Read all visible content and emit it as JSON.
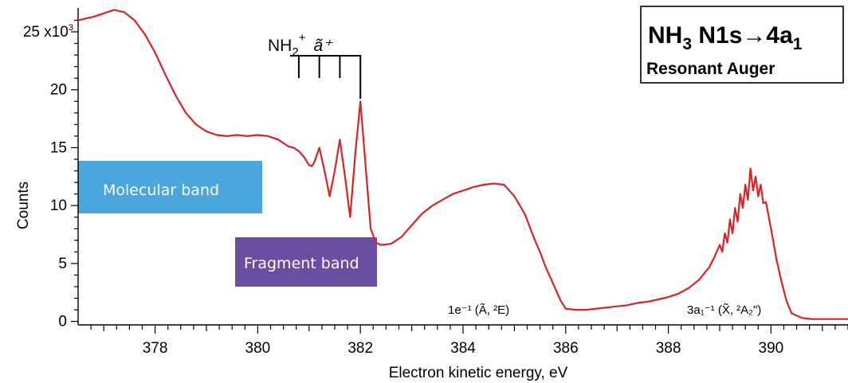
{
  "chart_data": {
    "type": "line",
    "title": "NH₃ N1s→4a₁",
    "title_parts": {
      "a": "NH",
      "a_sub": "3",
      "b": " N1s→4a",
      "b_sub": "1"
    },
    "subtitle": "Resonant Auger",
    "xlabel": "Electron kinetic energy, eV",
    "ylabel": "Counts",
    "xlim": [
      376.5,
      391.5
    ],
    "ylim": [
      -0.3,
      27.2
    ],
    "x_ticks": [
      378,
      380,
      382,
      384,
      386,
      388,
      390
    ],
    "y_ticks": [
      0,
      5,
      10,
      15,
      20,
      25
    ],
    "y_tick_labels": [
      "0",
      "5",
      "10",
      "15",
      "20",
      "25 x10"
    ],
    "y_top_exponent": "3",
    "grid": false,
    "legend": "none",
    "line_color": "#d62526",
    "series": [
      {
        "x": [
          376.5,
          376.8,
          377.0,
          377.2,
          377.4,
          377.6,
          377.8,
          378.0,
          378.2,
          378.4,
          378.6,
          378.8,
          379.0,
          379.2,
          379.4,
          379.6,
          379.8,
          380.0,
          380.2,
          380.4,
          380.6,
          380.7,
          380.8,
          380.9,
          381.0,
          381.05,
          381.1,
          381.2,
          381.3,
          381.4,
          381.5,
          381.6,
          381.7,
          381.8,
          381.9,
          382.0,
          382.1,
          382.2,
          382.3,
          382.4,
          382.6,
          382.8,
          383.0,
          383.2,
          383.4,
          383.6,
          383.8,
          384.0,
          384.2,
          384.4,
          384.6,
          384.8,
          384.9,
          385.0,
          385.2,
          385.4,
          385.5,
          385.6,
          385.7,
          385.8,
          385.9,
          386.0,
          386.2,
          386.4,
          386.6,
          386.8,
          387.0,
          387.2,
          387.4,
          387.6,
          387.8,
          388.0,
          388.2,
          388.4,
          388.6,
          388.8,
          388.9,
          389.0,
          389.05,
          389.1,
          389.15,
          389.2,
          389.25,
          389.3,
          389.35,
          389.4,
          389.45,
          389.5,
          389.55,
          389.6,
          389.65,
          389.7,
          389.75,
          389.8,
          389.85,
          389.9,
          390.0,
          390.1,
          390.2,
          390.3,
          390.4,
          390.6,
          390.8,
          391.0,
          391.5
        ],
        "y": [
          26.0,
          26.3,
          26.6,
          26.9,
          26.7,
          26.0,
          24.8,
          23.2,
          21.3,
          19.5,
          18.0,
          17.0,
          16.4,
          16.1,
          16.0,
          16.1,
          16.0,
          16.1,
          16.0,
          15.7,
          15.1,
          15.0,
          14.7,
          14.2,
          13.5,
          13.4,
          13.7,
          15.0,
          13.0,
          10.8,
          13.0,
          15.7,
          12.5,
          9.0,
          14.5,
          19.0,
          13.5,
          8.0,
          6.8,
          6.6,
          6.7,
          7.3,
          8.3,
          9.3,
          10.0,
          10.5,
          11.0,
          11.3,
          11.6,
          11.8,
          11.9,
          11.8,
          11.3,
          10.8,
          9.3,
          7.0,
          6.0,
          4.8,
          3.8,
          2.8,
          1.8,
          1.1,
          1.0,
          1.0,
          1.1,
          1.2,
          1.3,
          1.4,
          1.6,
          1.7,
          1.9,
          2.1,
          2.4,
          2.9,
          3.6,
          4.7,
          5.6,
          6.6,
          6.0,
          7.6,
          6.8,
          8.8,
          7.6,
          9.8,
          8.6,
          11.0,
          9.8,
          11.8,
          10.5,
          13.2,
          11.3,
          12.5,
          10.8,
          11.8,
          10.2,
          10.3,
          8.0,
          5.5,
          3.5,
          1.8,
          0.7,
          0.3,
          0.2,
          0.2,
          0.2
        ]
      }
    ],
    "annotations": {
      "vib_label_base": "NH",
      "vib_label_sub": "2",
      "vib_label_sup": "+",
      "vib_label_state": "ã⁺",
      "vib_comb_x": [
        380.8,
        381.2,
        381.6,
        382.0
      ],
      "peak1_label": "1e⁻¹ (Ã, ²E)",
      "peak2_label": "3a₁⁻¹ (X̃, ²A₂\")"
    },
    "bands": {
      "molecular": {
        "label": "Molecular band",
        "color": "#4aa6dc"
      },
      "fragment": {
        "label": "Fragment band",
        "color": "#6a4ea2"
      }
    }
  }
}
